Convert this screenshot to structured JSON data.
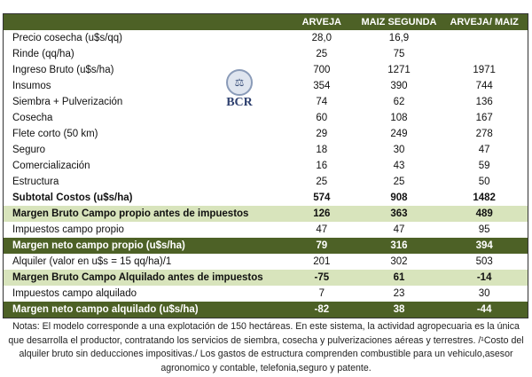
{
  "columns": [
    "",
    "ARVEJA",
    "MAIZ SEGUNDA",
    "ARVEJA/ MAIZ"
  ],
  "rows": [
    {
      "label": "Precio cosecha (u$s/qq)",
      "v": [
        "28,0",
        "16,9",
        ""
      ],
      "style": ""
    },
    {
      "label": "Rinde (qq/ha)",
      "v": [
        "25",
        "75",
        ""
      ],
      "style": ""
    },
    {
      "label": "Ingreso Bruto (u$s/ha)",
      "v": [
        "700",
        "1271",
        "1971"
      ],
      "style": ""
    },
    {
      "label": "Insumos",
      "v": [
        "354",
        "390",
        "744"
      ],
      "style": ""
    },
    {
      "label": "Siembra + Pulverización",
      "v": [
        "74",
        "62",
        "136"
      ],
      "style": ""
    },
    {
      "label": "Cosecha",
      "v": [
        "60",
        "108",
        "167"
      ],
      "style": ""
    },
    {
      "label": "Flete corto  (50 km)",
      "v": [
        "29",
        "249",
        "278"
      ],
      "style": ""
    },
    {
      "label": "Seguro",
      "v": [
        "18",
        "30",
        "47"
      ],
      "style": ""
    },
    {
      "label": "Comercialización",
      "v": [
        "16",
        "43",
        "59"
      ],
      "style": ""
    },
    {
      "label": "Estructura",
      "v": [
        "25",
        "25",
        "50"
      ],
      "style": ""
    },
    {
      "label": "Subtotal Costos (u$s/ha)",
      "v": [
        "574",
        "908",
        "1482"
      ],
      "style": "bold"
    },
    {
      "label": "Margen Bruto Campo propio antes de impuestos",
      "v": [
        "126",
        "363",
        "489"
      ],
      "style": "light"
    },
    {
      "label": "Impuestos  campo propio",
      "v": [
        "47",
        "47",
        "95"
      ],
      "style": ""
    },
    {
      "label": "Margen neto campo propio (u$s/ha)",
      "v": [
        "79",
        "316",
        "394"
      ],
      "style": "dark"
    },
    {
      "label": "Alquiler (valor en u$s = 15 qq/ha)/1",
      "v": [
        "201",
        "302",
        "503"
      ],
      "style": ""
    },
    {
      "label": "Margen Bruto Campo Alquilado antes de impuestos",
      "v": [
        "-75",
        "61",
        "-14"
      ],
      "style": "light"
    },
    {
      "label": "Impuestos campo alquilado",
      "v": [
        "7",
        "23",
        "30"
      ],
      "style": ""
    },
    {
      "label": "Margen neto campo alquilado (u$s/ha)",
      "v": [
        "-82",
        "38",
        "-44"
      ],
      "style": "dark"
    }
  ],
  "logo": {
    "text": "BCR"
  },
  "notes": "Notas: El modelo corresponde a una explotación de 150 hectáreas. En este sistema, la actividad agropecuaria es la única que desarrolla el productor, contratando los servicios de siembra, cosecha y pulverizaciones aéreas y terrestres. /¹Costo del alquiler bruto sin deducciones impositivas./ Los gastos de estructura comprenden combustible para un vehiculo,asesor agronomico y contable, telefonia,seguro y patente."
}
